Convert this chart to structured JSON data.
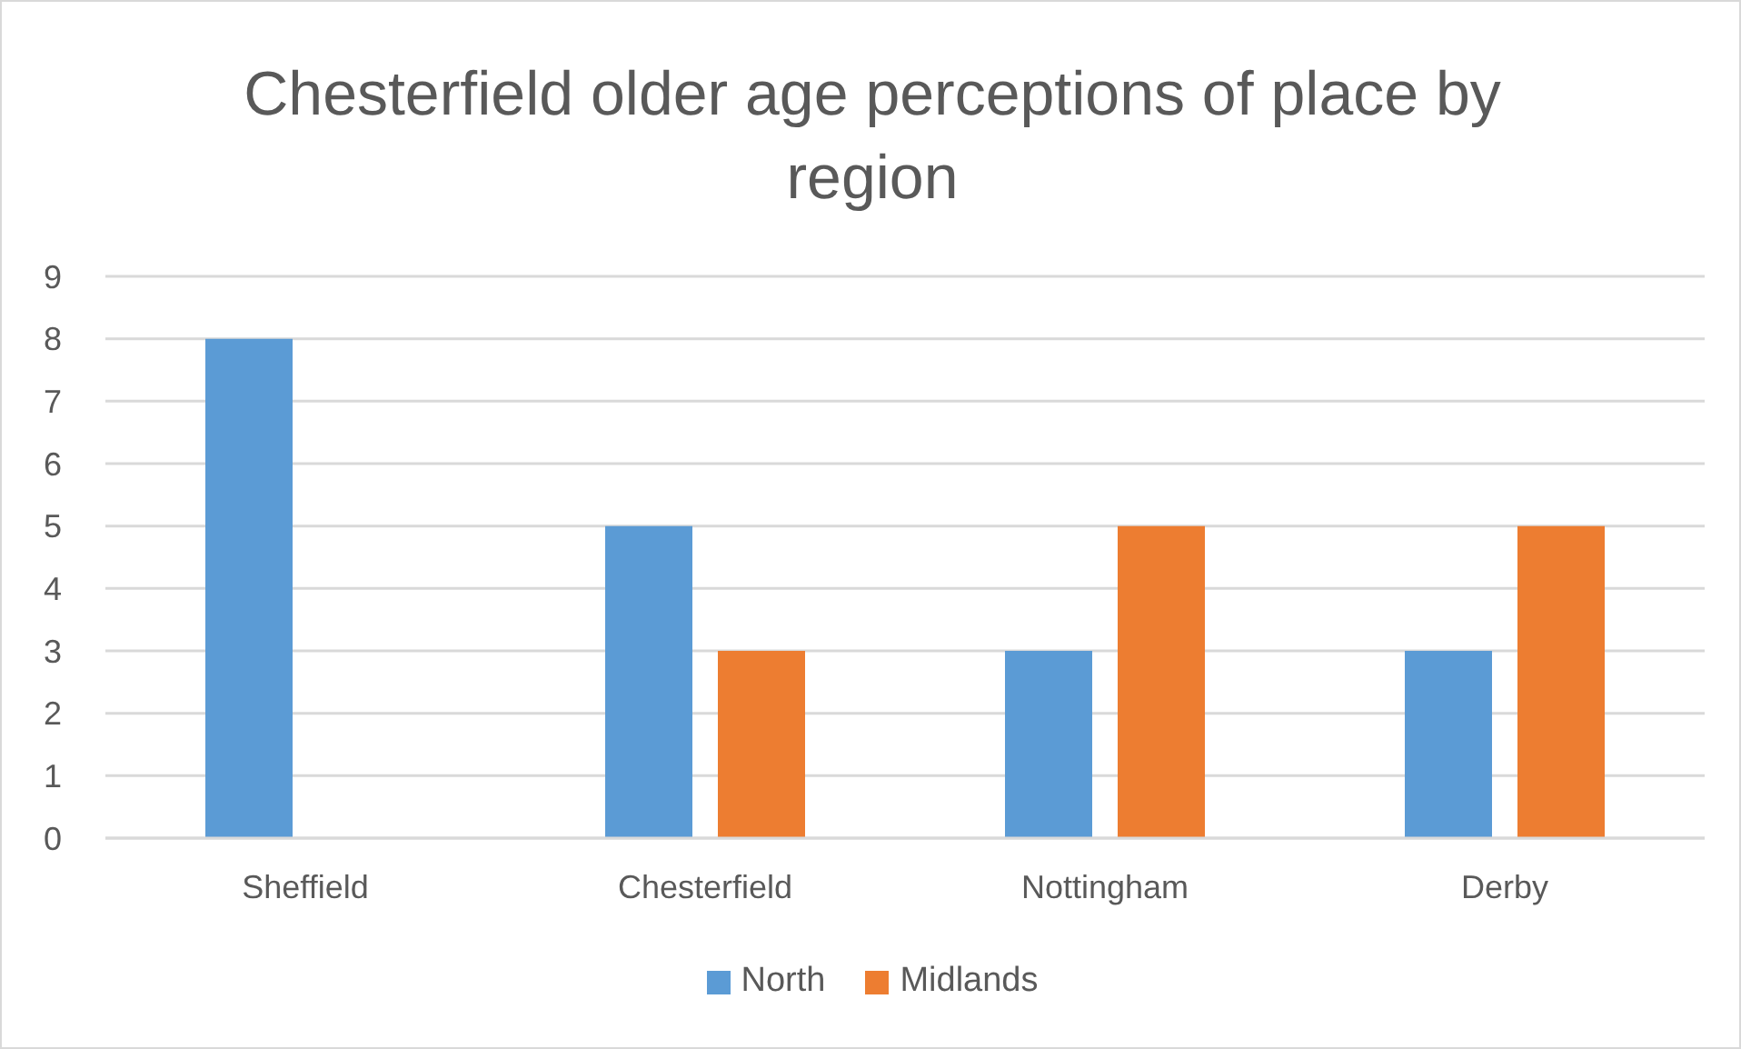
{
  "chart_data": {
    "type": "bar",
    "title": "Chesterfield older age perceptions of place by region",
    "categories": [
      "Sheffield",
      "Chesterfield",
      "Nottingham",
      "Derby"
    ],
    "series": [
      {
        "name": "North",
        "color": "#5b9bd5",
        "values": [
          8,
          5,
          3,
          3
        ]
      },
      {
        "name": "Midlands",
        "color": "#ed7d31",
        "values": [
          0,
          3,
          5,
          5
        ]
      }
    ],
    "ylim": [
      0,
      9
    ],
    "yticks": [
      0,
      1,
      2,
      3,
      4,
      5,
      6,
      7,
      8,
      9
    ],
    "grid": "y",
    "legend": "bottom"
  }
}
